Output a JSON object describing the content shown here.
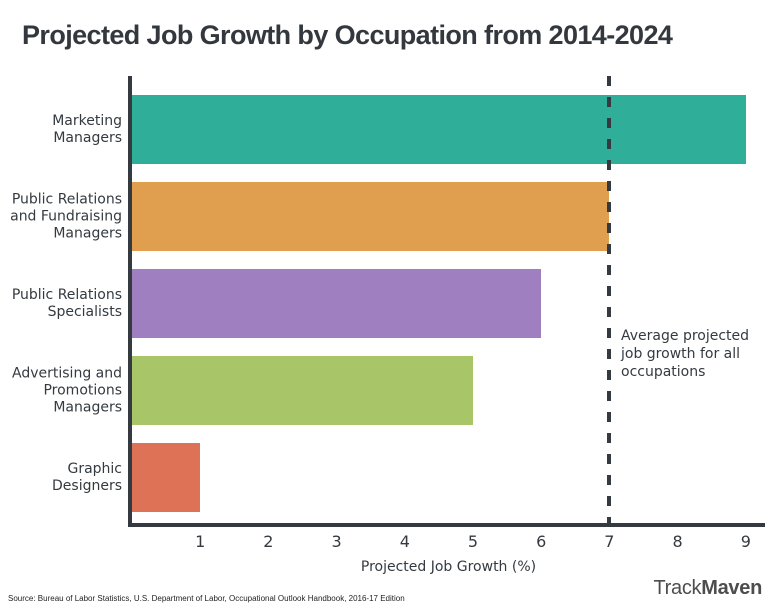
{
  "title": "Projected Job Growth by Occupation from 2014-2024",
  "chart_data": {
    "type": "bar",
    "orientation": "horizontal",
    "title": "Projected Job Growth by Occupation from 2014-2024",
    "categories": [
      "Marketing Managers",
      "Public Relations and Fundraising Managers",
      "Public Relations Specialists",
      "Advertising and Promotions Managers",
      "Graphic Designers"
    ],
    "values": [
      9,
      7,
      6,
      5,
      1
    ],
    "unit": "%",
    "colors": [
      "#2fae99",
      "#e09f4e",
      "#9f7fbf",
      "#a8c568",
      "#de7257"
    ],
    "xlabel": "Projected Job Growth (%)",
    "xticks": [
      1,
      2,
      3,
      4,
      5,
      6,
      7,
      8,
      9
    ],
    "xlim": [
      0,
      9.3
    ],
    "grid": false,
    "legend": null,
    "annotation": {
      "value": 7,
      "label": "Average projected job growth for all occupations",
      "line_style": "dashed"
    },
    "axis_color": "#343a40",
    "text_color": "#343a40"
  },
  "footer": {
    "source": "Source: Bureau of Labor Statistics, U.S. Department of Labor, Occupational Outlook Handbook, 2016-17 Edition",
    "brand": {
      "track": "Track",
      "maven": "Maven"
    }
  }
}
